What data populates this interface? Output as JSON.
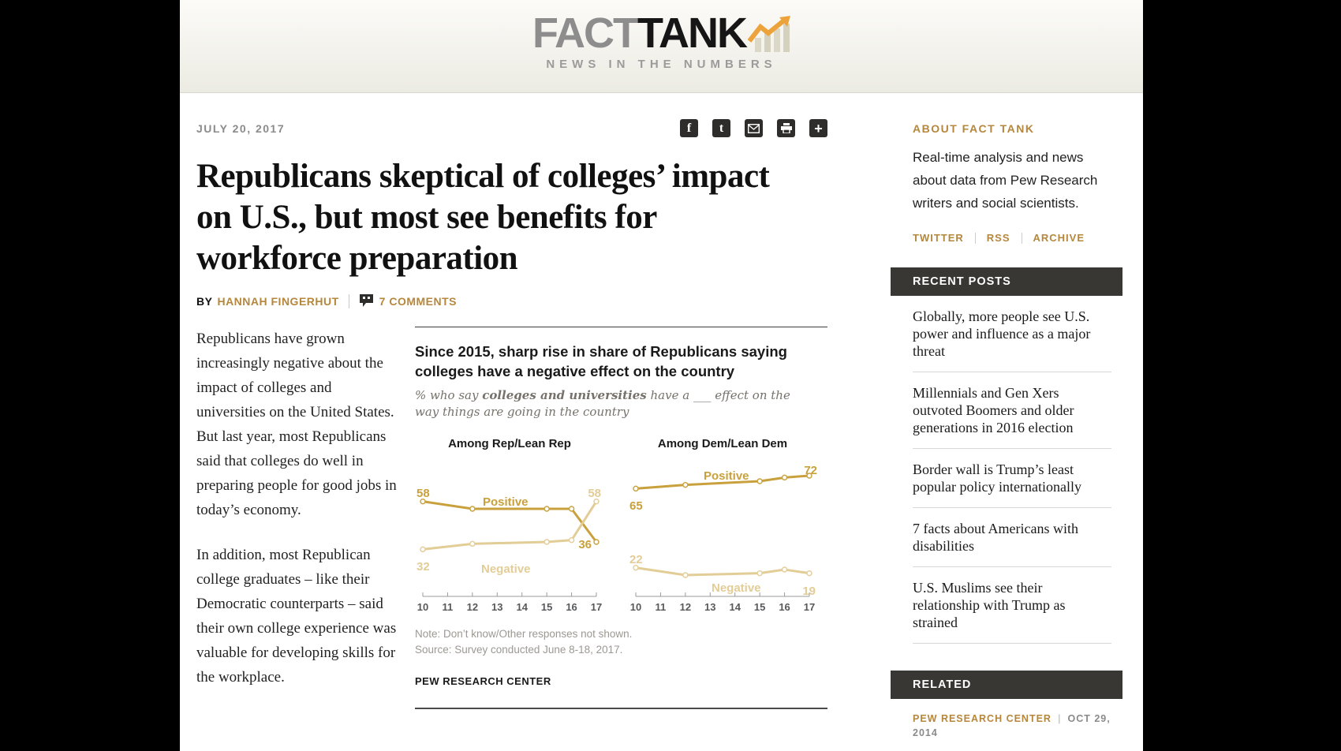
{
  "header": {
    "logo_fact": "FACT",
    "logo_tank": "TANK",
    "tagline": "NEWS IN THE NUMBERS"
  },
  "article": {
    "date": "JULY 20, 2017",
    "title": "Republicans skeptical of colleges’ impact on U.S., but most see benefits for workforce preparation",
    "byline_by": "BY",
    "author": "HANNAH FINGERHUT",
    "comments": "7 COMMENTS",
    "paragraphs": [
      "Republicans have grown increasingly negative about the impact of colleges and universities on the United States. But last year, most Republicans said that colleges do well in preparing people for good jobs in today’s economy.",
      "In addition, most Republican college graduates – like their Democratic counterparts – said their own college experience was valuable for developing skills for the workplace."
    ]
  },
  "chart_data": {
    "type": "line",
    "title": "Since 2015, sharp rise in share of Republicans saying colleges have a negative effect on the country",
    "subtitle_prefix": "% who say ",
    "subtitle_bold": "colleges and universities",
    "subtitle_suffix": " have a ___ effect on the way things are going in the country",
    "x": [
      2010,
      2012,
      2015,
      2016,
      2017
    ],
    "x_ticks": [
      "10",
      "11",
      "12",
      "13",
      "14",
      "15",
      "16",
      "17"
    ],
    "xlim": [
      2010,
      2017
    ],
    "ylim": [
      15,
      75
    ],
    "grid": false,
    "panels": [
      {
        "title": "Among Rep/Lean Rep",
        "series": [
          {
            "name": "Positive",
            "color": "#C9A13C",
            "values": [
              58,
              54,
              54,
              54,
              36
            ],
            "label_start": "58",
            "label_end": "36"
          },
          {
            "name": "Negative",
            "color": "#E3CD97",
            "values": [
              32,
              35,
              36,
              37,
              58
            ],
            "label_start": "32",
            "label_end": "58"
          }
        ]
      },
      {
        "title": "Among Dem/Lean Dem",
        "series": [
          {
            "name": "Positive",
            "color": "#C9A13C",
            "values": [
              65,
              67,
              69,
              71,
              72
            ],
            "label_start": "65",
            "label_end": "72"
          },
          {
            "name": "Negative",
            "color": "#E3CD97",
            "values": [
              22,
              18,
              19,
              21,
              19
            ],
            "label_start": "22",
            "label_end": "19"
          }
        ]
      }
    ],
    "note": "Note: Don’t know/Other responses not shown.",
    "source": "Source: Survey conducted June 8-18, 2017.",
    "credit": "PEW RESEARCH CENTER"
  },
  "sidebar": {
    "about_title": "ABOUT FACT TANK",
    "about_text": "Real-time analysis and news about data from Pew Research writers and social scientists.",
    "links": [
      "TWITTER",
      "RSS",
      "ARCHIVE"
    ],
    "recent_title": "RECENT POSTS",
    "recent_posts": [
      "Globally, more people see U.S. power and influence as a major threat",
      "Millennials and Gen Xers outvoted Boomers and older generations in 2016 election",
      "Border wall is Trump’s least popular policy internationally",
      "7 facts about Americans with disabilities",
      "U.S. Muslims see their relationship with Trump as strained"
    ],
    "related_title": "RELATED",
    "related_source": "PEW RESEARCH CENTER",
    "related_date": "OCT 29, 2014"
  }
}
